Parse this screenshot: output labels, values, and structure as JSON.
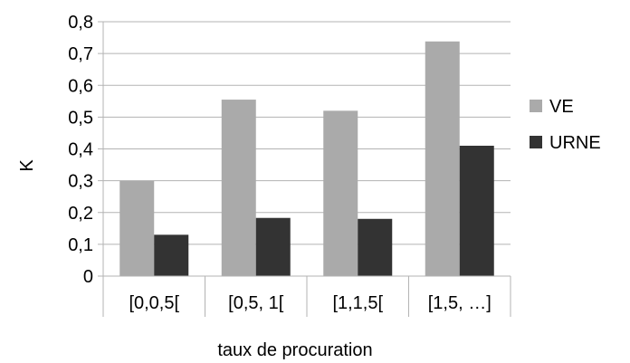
{
  "chart_data": {
    "type": "bar",
    "categories": [
      "[0,0,5[",
      "[0,5,  1[",
      "[1,1,5[",
      "[1,5,  …]"
    ],
    "series": [
      {
        "name": "VE",
        "color": "#aaaaaa",
        "values": [
          0.3,
          0.555,
          0.52,
          0.738
        ]
      },
      {
        "name": "URNE",
        "color": "#333333",
        "values": [
          0.13,
          0.183,
          0.18,
          0.41
        ]
      }
    ],
    "xlabel": "taux de procuration",
    "ylabel": "K",
    "ylim": [
      0,
      0.8
    ],
    "yticks": [
      "0",
      "0,1",
      "0,2",
      "0,3",
      "0,4",
      "0,5",
      "0,6",
      "0,7",
      "0,8"
    ],
    "grid": true,
    "legend_position": "right"
  }
}
